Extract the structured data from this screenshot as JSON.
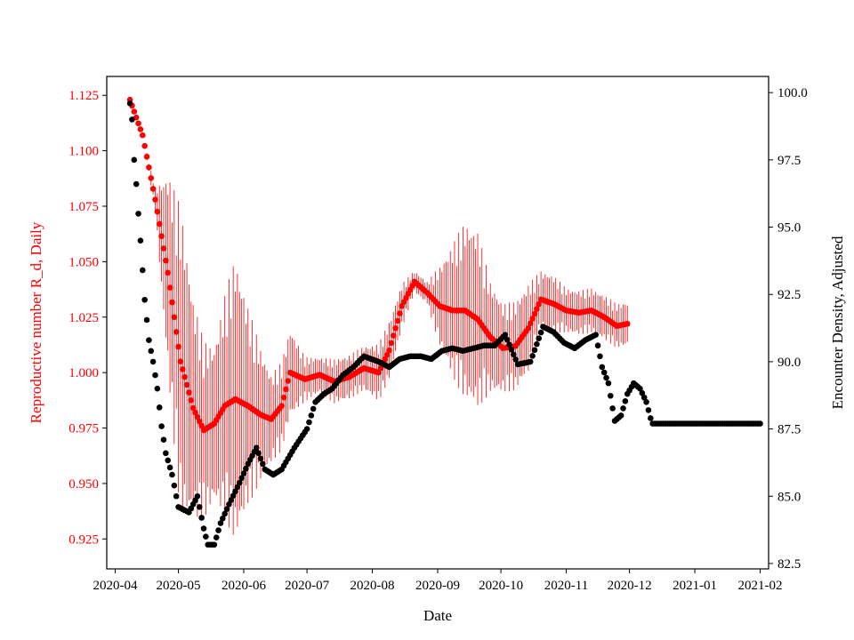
{
  "chart_data": {
    "type": "scatter",
    "title": "",
    "xlabel": "Date",
    "ylabel_left": "Reproductive number R_d, Daily",
    "ylabel_right": "Encounter Density, Adjusted",
    "x_range": [
      "2020-03-28",
      "2021-02-05"
    ],
    "x_ticks": [
      "2020-04",
      "2020-05",
      "2020-06",
      "2020-07",
      "2020-08",
      "2020-09",
      "2020-10",
      "2020-11",
      "2020-12",
      "2021-01",
      "2021-02"
    ],
    "y_left_range": [
      0.9115,
      1.1335
    ],
    "y_left_ticks": [
      "0.925",
      "0.950",
      "0.975",
      "1.000",
      "1.025",
      "1.050",
      "1.075",
      "1.100",
      "1.125"
    ],
    "y_right_range": [
      82.3,
      100.6
    ],
    "y_right_ticks": [
      "82.5",
      "85.0",
      "87.5",
      "90.0",
      "92.5",
      "95.0",
      "97.5",
      "100.0"
    ],
    "grid": false,
    "legend": "none",
    "colors": {
      "left_axis": "#ff0000",
      "right_axis": "#000000",
      "frame": "#000000"
    },
    "series": [
      {
        "axis": "left",
        "color": "#ff0000",
        "marker": "circle",
        "error_bars": true,
        "anchors": [
          [
            "2020-04-08",
            1.123,
            0.0
          ],
          [
            "2020-04-14",
            1.107,
            0.0
          ],
          [
            "2020-04-20",
            1.078,
            0.005
          ],
          [
            "2020-04-26",
            1.045,
            0.045
          ],
          [
            "2020-05-02",
            1.005,
            0.07
          ],
          [
            "2020-05-08",
            0.984,
            0.05
          ],
          [
            "2020-05-13",
            0.974,
            0.04
          ],
          [
            "2020-05-18",
            0.977,
            0.035
          ],
          [
            "2020-05-23",
            0.985,
            0.05
          ],
          [
            "2020-05-28",
            0.988,
            0.065
          ],
          [
            "2020-06-03",
            0.985,
            0.045
          ],
          [
            "2020-06-09",
            0.981,
            0.03
          ],
          [
            "2020-06-14",
            0.979,
            0.02
          ],
          [
            "2020-06-19",
            0.985,
            0.02
          ],
          [
            "2020-06-23",
            1.0,
            0.02
          ],
          [
            "2020-06-30",
            0.997,
            0.01
          ],
          [
            "2020-07-07",
            0.999,
            0.008
          ],
          [
            "2020-07-14",
            0.996,
            0.01
          ],
          [
            "2020-07-21",
            0.998,
            0.01
          ],
          [
            "2020-07-28",
            1.002,
            0.01
          ],
          [
            "2020-08-04",
            1.0,
            0.013
          ],
          [
            "2020-08-09",
            1.01,
            0.013
          ],
          [
            "2020-08-15",
            1.03,
            0.01
          ],
          [
            "2020-08-21",
            1.041,
            0.005
          ],
          [
            "2020-08-27",
            1.036,
            0.005
          ],
          [
            "2020-09-02",
            1.03,
            0.018
          ],
          [
            "2020-09-08",
            1.028,
            0.03
          ],
          [
            "2020-09-14",
            1.028,
            0.04
          ],
          [
            "2020-09-20",
            1.024,
            0.04
          ],
          [
            "2020-09-26",
            1.016,
            0.025
          ],
          [
            "2020-10-02",
            1.011,
            0.02
          ],
          [
            "2020-10-08",
            1.012,
            0.02
          ],
          [
            "2020-10-14",
            1.02,
            0.02
          ],
          [
            "2020-10-20",
            1.033,
            0.013
          ],
          [
            "2020-10-26",
            1.031,
            0.013
          ],
          [
            "2020-11-01",
            1.028,
            0.01
          ],
          [
            "2020-11-07",
            1.027,
            0.01
          ],
          [
            "2020-11-13",
            1.028,
            0.01
          ],
          [
            "2020-11-19",
            1.025,
            0.01
          ],
          [
            "2020-11-25",
            1.021,
            0.01
          ],
          [
            "2020-11-30",
            1.022,
            0.01
          ]
        ]
      },
      {
        "axis": "right",
        "color": "#000000",
        "marker": "circle",
        "error_bars": false,
        "anchors": [
          [
            "2020-04-08",
            99.6
          ],
          [
            "2020-04-09",
            99.0
          ],
          [
            "2020-04-10",
            97.5
          ],
          [
            "2020-04-11",
            96.6
          ],
          [
            "2020-04-12",
            95.5
          ],
          [
            "2020-04-13",
            94.5
          ],
          [
            "2020-04-15",
            92.3
          ],
          [
            "2020-04-17",
            90.8
          ],
          [
            "2020-04-19",
            90.0
          ],
          [
            "2020-04-21",
            89.0
          ],
          [
            "2020-04-23",
            87.6
          ],
          [
            "2020-04-25",
            86.6
          ],
          [
            "2020-04-28",
            85.8
          ],
          [
            "2020-05-01",
            84.6
          ],
          [
            "2020-05-06",
            84.4
          ],
          [
            "2020-05-10",
            85.0
          ],
          [
            "2020-05-13",
            83.8
          ],
          [
            "2020-05-15",
            83.2
          ],
          [
            "2020-05-18",
            83.2
          ],
          [
            "2020-05-21",
            84.0
          ],
          [
            "2020-05-25",
            84.7
          ],
          [
            "2020-05-30",
            85.5
          ],
          [
            "2020-06-03",
            86.2
          ],
          [
            "2020-06-07",
            86.8
          ],
          [
            "2020-06-11",
            86.0
          ],
          [
            "2020-06-15",
            85.8
          ],
          [
            "2020-06-19",
            86.0
          ],
          [
            "2020-06-25",
            86.8
          ],
          [
            "2020-07-01",
            87.5
          ],
          [
            "2020-07-05",
            88.5
          ],
          [
            "2020-07-09",
            88.8
          ],
          [
            "2020-07-13",
            89.0
          ],
          [
            "2020-07-18",
            89.5
          ],
          [
            "2020-07-23",
            89.8
          ],
          [
            "2020-07-28",
            90.2
          ],
          [
            "2020-08-04",
            90.0
          ],
          [
            "2020-08-09",
            89.8
          ],
          [
            "2020-08-14",
            90.1
          ],
          [
            "2020-08-19",
            90.2
          ],
          [
            "2020-08-24",
            90.2
          ],
          [
            "2020-08-29",
            90.1
          ],
          [
            "2020-09-03",
            90.4
          ],
          [
            "2020-09-08",
            90.5
          ],
          [
            "2020-09-13",
            90.4
          ],
          [
            "2020-09-18",
            90.5
          ],
          [
            "2020-09-23",
            90.6
          ],
          [
            "2020-09-28",
            90.6
          ],
          [
            "2020-10-03",
            91.0
          ],
          [
            "2020-10-09",
            89.9
          ],
          [
            "2020-10-15",
            90.0
          ],
          [
            "2020-10-21",
            91.3
          ],
          [
            "2020-10-26",
            91.1
          ],
          [
            "2020-10-31",
            90.7
          ],
          [
            "2020-11-05",
            90.5
          ],
          [
            "2020-11-10",
            90.8
          ],
          [
            "2020-11-15",
            91.0
          ],
          [
            "2020-11-18",
            89.8
          ],
          [
            "2020-11-21",
            89.2
          ],
          [
            "2020-11-24",
            87.8
          ],
          [
            "2020-11-27",
            88.0
          ],
          [
            "2020-11-30",
            88.8
          ],
          [
            "2020-12-03",
            89.2
          ],
          [
            "2020-12-06",
            89.0
          ],
          [
            "2020-12-09",
            88.5
          ],
          [
            "2020-12-11",
            87.9
          ],
          [
            "2020-12-12",
            87.7
          ],
          [
            "2021-02-01",
            87.7
          ]
        ]
      }
    ]
  }
}
